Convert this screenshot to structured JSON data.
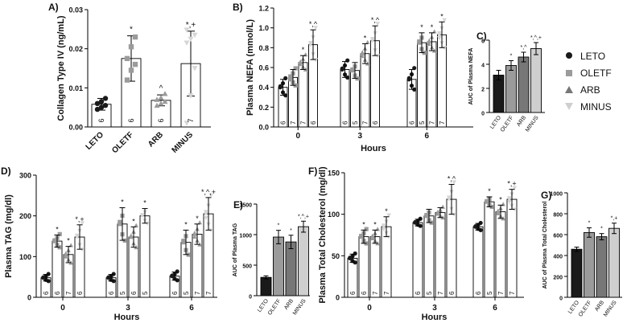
{
  "groups": [
    "LETO",
    "OLETF",
    "ARB",
    "MINUS"
  ],
  "colors": {
    "LETO": "#1a1a1a",
    "OLETF": "#9b9b9b",
    "ARB": "#777777",
    "MINUS": "#cfcfcf"
  },
  "legend": {
    "labels": [
      "LETO",
      "OLETF",
      "ARB",
      "MINUS"
    ],
    "markers": [
      "circle",
      "square",
      "triangle",
      "inverted-triangle"
    ]
  },
  "chart_data": [
    {
      "id": "A",
      "panel_label": "A)",
      "type": "bar",
      "ylabel": "Collagen Type IV (ng/mL)",
      "ylim": [
        0,
        0.03
      ],
      "yticks": [
        0.0,
        0.01,
        0.02,
        0.03
      ],
      "ytick_labels": [
        "0.00",
        "0.01",
        "0.02",
        "0.03"
      ],
      "categories": [
        "LETO",
        "OLETF",
        "ARB",
        "MINUS"
      ],
      "values": [
        0.0058,
        0.0175,
        0.0068,
        0.0162
      ],
      "errors": [
        0.0015,
        0.0058,
        0.0014,
        0.0083
      ],
      "n": [
        "6",
        "6",
        "6",
        "7"
      ],
      "sig": [
        "",
        "*",
        "^",
        "*,+"
      ],
      "points": [
        [
          0.0045,
          0.005,
          0.0055,
          0.006,
          0.0065,
          0.0073
        ],
        [
          0.012,
          0.0145,
          0.016,
          0.0175,
          0.0205,
          0.023
        ],
        [
          0.0055,
          0.006,
          0.0065,
          0.007,
          0.0075,
          0.0085
        ],
        [
          0.001,
          0.008,
          0.015,
          0.0215,
          0.0225,
          0.0235,
          0.0248
        ]
      ]
    },
    {
      "id": "B",
      "panel_label": "B)",
      "type": "grouped-bar",
      "ylabel": "Plasma NEFA (mmol/L)",
      "xlabel": "Hours",
      "ylim": [
        0,
        1.2
      ],
      "yticks": [
        0.0,
        0.2,
        0.4,
        0.6,
        0.8,
        1.0,
        1.2
      ],
      "ytick_labels": [
        "0.0",
        "0.2",
        "0.4",
        "0.6",
        "0.8",
        "1.0",
        "1.2"
      ],
      "categories": [
        "0",
        "3",
        "6"
      ],
      "series": [
        {
          "name": "LETO",
          "values": [
            0.4,
            0.58,
            0.48
          ],
          "errors": [
            0.08,
            0.08,
            0.1
          ]
        },
        {
          "name": "OLETF",
          "values": [
            0.5,
            0.57,
            0.85
          ],
          "errors": [
            0.08,
            0.08,
            0.1
          ]
        },
        {
          "name": "ARB",
          "values": [
            0.65,
            0.74,
            0.86
          ],
          "errors": [
            0.07,
            0.1,
            0.09
          ]
        },
        {
          "name": "MINUS",
          "values": [
            0.83,
            0.87,
            0.93
          ],
          "errors": [
            0.15,
            0.15,
            0.13
          ]
        }
      ],
      "n": [
        [
          "6",
          "7",
          "7",
          "6"
        ],
        [
          "6",
          "5",
          "7",
          "6"
        ],
        [
          "6",
          "5",
          "7",
          "7"
        ]
      ],
      "sig": [
        [
          "",
          "",
          "*",
          "*,^"
        ],
        [
          "",
          "",
          "*",
          "*,^"
        ],
        [
          "",
          "*",
          "*",
          "*"
        ]
      ]
    },
    {
      "id": "C",
      "panel_label": "C)",
      "type": "bar",
      "ylabel": "AUC of Plasma NEFA",
      "ylim": [
        0,
        6
      ],
      "yticks": [
        0,
        2,
        4,
        6
      ],
      "ytick_labels": [
        "0",
        "2",
        "4",
        "6"
      ],
      "categories": [
        "LETO",
        "OLETF",
        "ARB",
        "MINUS"
      ],
      "values": [
        3.1,
        3.9,
        4.6,
        5.3
      ],
      "errors": [
        0.4,
        0.4,
        0.4,
        0.5
      ],
      "sig": [
        "",
        "*",
        "*,^",
        "*,^,+"
      ]
    },
    {
      "id": "D",
      "panel_label": "D)",
      "type": "grouped-bar",
      "ylabel": "Plasma TAG (mg/dl)",
      "xlabel": "Hours",
      "ylim": [
        0,
        300
      ],
      "yticks": [
        0,
        100,
        200,
        300
      ],
      "ytick_labels": [
        "0",
        "100",
        "200",
        "300"
      ],
      "categories": [
        "0",
        "3",
        "6"
      ],
      "series": [
        {
          "name": "LETO",
          "values": [
            48,
            48,
            52
          ],
          "errors": [
            8,
            8,
            10
          ]
        },
        {
          "name": "OLETF",
          "values": [
            138,
            180,
            135
          ],
          "errors": [
            15,
            40,
            30
          ]
        },
        {
          "name": "ARB",
          "values": [
            105,
            148,
            155
          ],
          "errors": [
            20,
            25,
            25
          ]
        },
        {
          "name": "MINUS",
          "values": [
            148,
            200,
            205
          ],
          "errors": [
            30,
            18,
            40
          ]
        }
      ],
      "n": [
        [
          "6",
          "6",
          "7",
          "6"
        ],
        [
          "6",
          "5",
          "6",
          "5"
        ],
        [
          "6",
          "5",
          "7",
          "7"
        ]
      ],
      "sig": [
        [
          "",
          "*",
          "*",
          "*,+"
        ],
        [
          "",
          "*",
          "*",
          "*"
        ],
        [
          "",
          "*",
          "*",
          "*,^,+"
        ]
      ]
    },
    {
      "id": "E",
      "panel_label": "E)",
      "type": "bar",
      "ylabel": "AUC of Plasma TAG",
      "ylim": [
        0,
        1500
      ],
      "yticks": [
        0,
        500,
        1000,
        1500
      ],
      "ytick_labels": [
        "0",
        "500",
        "1000",
        "1500"
      ],
      "categories": [
        "LETO",
        "OLETF",
        "ARB",
        "MINUS"
      ],
      "values": [
        300,
        960,
        880,
        1130
      ],
      "errors": [
        25,
        110,
        110,
        90
      ],
      "sig": [
        "",
        "*",
        "*",
        "*,^,+"
      ]
    },
    {
      "id": "F",
      "panel_label": "F)",
      "type": "grouped-bar",
      "ylabel": "Plasma Total Cholesterol (mg/dl)",
      "xlabel": "Hours",
      "ylim": [
        0,
        150
      ],
      "yticks": [
        0,
        50,
        100,
        150
      ],
      "ytick_labels": [
        "0",
        "50",
        "100",
        "150"
      ],
      "categories": [
        "0",
        "3",
        "6"
      ],
      "series": [
        {
          "name": "LETO",
          "values": [
            47,
            90,
            85
          ],
          "errors": [
            5,
            4,
            4
          ]
        },
        {
          "name": "OLETF",
          "values": [
            73,
            98,
            115
          ],
          "errors": [
            8,
            8,
            6
          ]
        },
        {
          "name": "ARB",
          "values": [
            73,
            102,
            103
          ],
          "errors": [
            8,
            6,
            8
          ]
        },
        {
          "name": "MINUS",
          "values": [
            85,
            118,
            118
          ],
          "errors": [
            12,
            18,
            12
          ]
        }
      ],
      "n": [
        [
          "6",
          "6",
          "7",
          "7"
        ],
        [
          "6",
          "5",
          "7",
          "6"
        ],
        [
          "6",
          "5",
          "7",
          "7"
        ]
      ],
      "sig": [
        [
          "",
          "*",
          "*",
          "*"
        ],
        [
          "",
          "",
          "",
          "*,^"
        ],
        [
          "",
          "*",
          "*",
          "*,+"
        ]
      ]
    },
    {
      "id": "G",
      "panel_label": "G)",
      "type": "bar",
      "ylabel": "AUC of Plasma Total Cholesterol",
      "ylim": [
        0,
        1000
      ],
      "yticks": [
        0,
        200,
        400,
        600,
        800,
        1000
      ],
      "ytick_labels": [
        "0",
        "200",
        "400",
        "600",
        "800",
        "1000"
      ],
      "categories": [
        "LETO",
        "OLETF",
        "ARB",
        "MINUS"
      ],
      "values": [
        460,
        620,
        580,
        660
      ],
      "errors": [
        20,
        45,
        30,
        50
      ],
      "sig": [
        "",
        "*",
        "*",
        "*,+"
      ]
    }
  ]
}
